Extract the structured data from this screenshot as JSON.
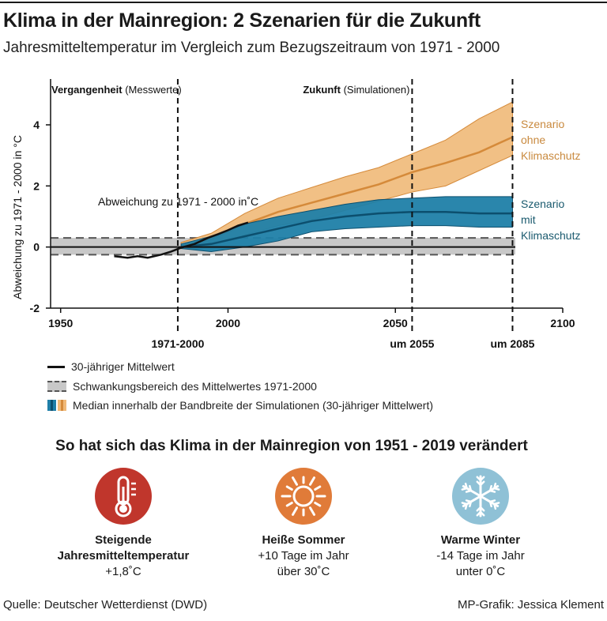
{
  "title": "Klima in der Mainregion: 2 Szenarien für die Zukunft",
  "subtitle": "Jahresmitteltemperatur im Vergleich zum Bezugszeitraum von 1971 - 2000",
  "chart_data": {
    "type": "area",
    "ylabel": "Abweichung zu 1971 - 2000 in °C",
    "annotation": "Abweichung zu 1971 - 2000 in˚C",
    "xlim": [
      1947,
      2100
    ],
    "ylim": [
      -2,
      5.5
    ],
    "x_ticks": [
      "1950",
      "2000",
      "2050",
      "2100"
    ],
    "x_tick_values": [
      1950,
      2000,
      2050,
      2100
    ],
    "y_ticks": [
      "-2",
      "0",
      "2",
      "4"
    ],
    "y_tick_values": [
      -2,
      0,
      2,
      4
    ],
    "period_labels": {
      "past_bold": "Vergangenheit",
      "past_normal": "(Messwerte)",
      "future_bold": "Zukunft",
      "future_normal": "(Simulationen)"
    },
    "markers": [
      {
        "year": 1985,
        "label": "1971-2000"
      },
      {
        "year": 2055,
        "label": "um 2055"
      },
      {
        "year": 2085,
        "label": "um 2085"
      }
    ],
    "reference_band": {
      "lower": -0.25,
      "upper": 0.3,
      "label": "Schwankungsbereich des Mittelwertes 1971-2000"
    },
    "observed": {
      "name": "30-jähriger Mittelwert",
      "x": [
        1966,
        1970,
        1973,
        1976,
        1980,
        1983,
        1986,
        1990,
        1994,
        1997,
        2000,
        2003,
        2006
      ],
      "y": [
        -0.3,
        -0.35,
        -0.3,
        -0.35,
        -0.25,
        -0.15,
        -0.02,
        0.1,
        0.3,
        0.42,
        0.55,
        0.7,
        0.8
      ]
    },
    "series": [
      {
        "name": "Szenario ohne Klimaschutz",
        "label_lines": [
          "Szenario",
          "ohne",
          "Klimaschutz"
        ],
        "x": [
          1986,
          1995,
          2005,
          2015,
          2025,
          2035,
          2045,
          2055,
          2065,
          2075,
          2085
        ],
        "lower": [
          -0.05,
          0.05,
          0.4,
          0.7,
          0.9,
          1.2,
          1.5,
          1.8,
          2.0,
          2.5,
          3.0
        ],
        "median": [
          0.05,
          0.25,
          0.75,
          1.15,
          1.45,
          1.75,
          2.05,
          2.45,
          2.75,
          3.1,
          3.6
        ],
        "upper": [
          0.15,
          0.45,
          1.1,
          1.6,
          1.95,
          2.3,
          2.6,
          3.05,
          3.5,
          4.2,
          4.75
        ]
      },
      {
        "name": "Szenario mit Klimaschutz",
        "label_lines": [
          "Szenario",
          "mit",
          "Klimaschutz"
        ],
        "x": [
          1986,
          1995,
          2005,
          2015,
          2025,
          2035,
          2045,
          2055,
          2065,
          2075,
          2085
        ],
        "lower": [
          -0.05,
          -0.15,
          0.0,
          0.2,
          0.5,
          0.6,
          0.65,
          0.7,
          0.7,
          0.65,
          0.65
        ],
        "median": [
          0.0,
          0.1,
          0.35,
          0.6,
          0.85,
          1.0,
          1.1,
          1.15,
          1.15,
          1.1,
          1.1
        ],
        "upper": [
          0.1,
          0.35,
          0.75,
          1.0,
          1.2,
          1.4,
          1.55,
          1.6,
          1.65,
          1.65,
          1.65
        ]
      }
    ],
    "colors": {
      "orange_band": "#f0b978",
      "orange_median": "#d58a3a",
      "orange_text": "#c98a3f",
      "blue_band": "#1f7fa8",
      "blue_median": "#0c4f6e",
      "blue_text": "#1a5a6e",
      "ref_band": "#c8c8c8",
      "observed": "#111111"
    }
  },
  "legend": {
    "observed": "30-jähriger Mittelwert",
    "band": "Schwankungsbereich des Mittelwertes 1971-2000",
    "median": "Median innerhalb der Bandbreite der Simulationen (30-jähriger Mittelwert)"
  },
  "section_title": "So hat sich das Klima in der Mainregion von 1951 - 2019 verändert",
  "facts": [
    {
      "icon": "thermometer-icon",
      "color": "#c0362c",
      "title_lines": [
        "Steigende",
        "Jahresmitteltemperatur"
      ],
      "text_lines": [
        "+1,8˚C"
      ]
    },
    {
      "icon": "sun-icon",
      "color": "#e07b39",
      "title_lines": [
        "Heiße Sommer"
      ],
      "text_lines": [
        "+10 Tage im Jahr",
        "über 30˚C"
      ]
    },
    {
      "icon": "snowflake-icon",
      "color": "#8fc1d6",
      "title_lines": [
        "Warme Winter"
      ],
      "text_lines": [
        "-14 Tage im Jahr",
        "unter 0˚C"
      ]
    }
  ],
  "source": "Quelle: Deutscher Wetterdienst (DWD)",
  "credit": "MP-Grafik: Jessica Klement"
}
